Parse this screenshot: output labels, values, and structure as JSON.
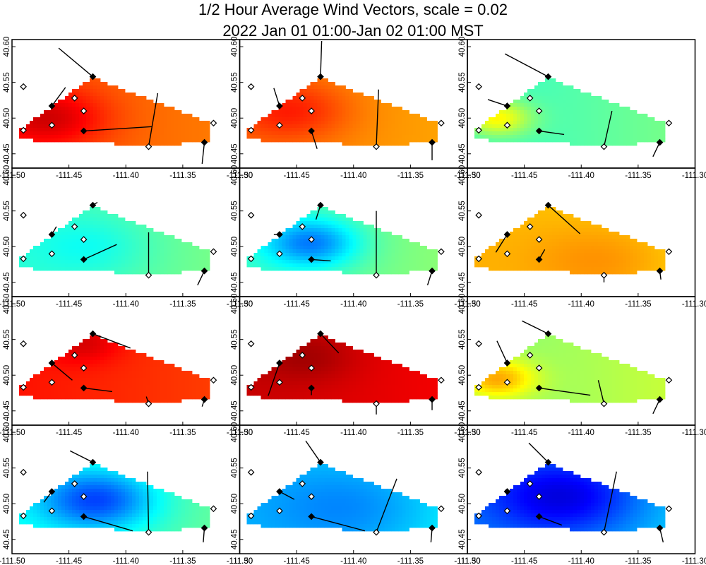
{
  "chart_data": {
    "type": "heatmap",
    "title_line1": "1/2 Hour Average Wind Vectors, scale =  0.02",
    "title_line2": "2022 Jan 01 01:00-Jan 02 01:00 MST",
    "xlim": [
      -111.5,
      -111.3
    ],
    "ylim": [
      40.43,
      40.61
    ],
    "x_ticks": [
      "-111.50",
      "-111.45",
      "-111.40",
      "-111.35",
      "-111.30"
    ],
    "x_tick_values": [
      -111.5,
      -111.45,
      -111.4,
      -111.35,
      -111.3
    ],
    "y_ticks": [
      "40.45",
      "40.50",
      "40.55",
      "40.60"
    ],
    "y_tick_values": [
      40.45,
      40.5,
      40.55,
      40.6
    ],
    "region_polygon": [
      [
        -111.495,
        40.482
      ],
      [
        -111.47,
        40.51
      ],
      [
        -111.43,
        40.557
      ],
      [
        -111.325,
        40.493
      ],
      [
        -111.328,
        40.466
      ],
      [
        -111.38,
        40.462
      ],
      [
        -111.495,
        40.47
      ]
    ],
    "stations_open": [
      [
        -111.49,
        40.544
      ],
      [
        -111.49,
        40.483
      ],
      [
        -111.465,
        40.49
      ],
      [
        -111.445,
        40.528
      ],
      [
        -111.437,
        40.51
      ],
      [
        -111.323,
        40.493
      ],
      [
        -111.38,
        40.46
      ]
    ],
    "stations_filled": [
      [
        -111.429,
        40.558
      ],
      [
        -111.465,
        40.517
      ],
      [
        -111.437,
        40.482
      ],
      [
        -111.331,
        40.466
      ]
    ],
    "colormap": [
      "#00007f",
      "#0000ff",
      "#007fff",
      "#00ffff",
      "#7fff7f",
      "#ffff00",
      "#ff7f00",
      "#ff0000",
      "#7f0000"
    ],
    "panels": [
      {
        "name": "panel-1",
        "base": 0.8,
        "hot": [
          -111.468,
          40.5,
          0.93,
          0.03
        ],
        "vectors": [
          [
            -111.429,
            40.558,
            -0.03,
            0.04
          ],
          [
            -111.465,
            40.517,
            0.012,
            0.026
          ],
          [
            -111.437,
            40.482,
            0.06,
            0.006
          ],
          [
            -111.38,
            40.46,
            0.008,
            0.075
          ],
          [
            -111.331,
            40.466,
            -0.002,
            -0.03
          ]
        ]
      },
      {
        "name": "panel-2",
        "base": 0.76,
        "hot": [
          -111.455,
          40.51,
          0.86,
          0.03
        ],
        "vectors": [
          [
            -111.429,
            40.558,
            0.001,
            0.05
          ],
          [
            -111.465,
            40.517,
            -0.005,
            0.025
          ],
          [
            -111.437,
            40.482,
            0.005,
            -0.025
          ],
          [
            -111.38,
            40.46,
            0.002,
            0.08
          ],
          [
            -111.331,
            40.466,
            0.0,
            -0.025
          ]
        ]
      },
      {
        "name": "panel-3",
        "base": 0.42,
        "hot": [
          -111.475,
          40.5,
          0.62,
          0.018
        ],
        "vectors": [
          [
            -111.429,
            40.558,
            -0.038,
            0.032
          ],
          [
            -111.465,
            40.517,
            -0.017,
            0.009
          ],
          [
            -111.437,
            40.482,
            0.022,
            -0.005
          ],
          [
            -111.38,
            40.46,
            0.007,
            0.05
          ],
          [
            -111.331,
            40.466,
            -0.006,
            -0.02
          ]
        ]
      },
      {
        "name": "panel-4",
        "base": 0.42,
        "hot": [
          -111.43,
          40.5,
          0.36,
          0.03
        ],
        "vectors": [
          [
            -111.429,
            40.558,
            0.004,
            0.004
          ],
          [
            -111.465,
            40.517,
            0.004,
            0.011
          ],
          [
            -111.437,
            40.482,
            0.029,
            0.021
          ],
          [
            -111.38,
            40.46,
            0.0,
            0.06
          ],
          [
            -111.331,
            40.466,
            -0.006,
            -0.02
          ]
        ]
      },
      {
        "name": "panel-5",
        "base": 0.44,
        "hot": [
          -111.437,
          40.505,
          0.22,
          0.025
        ],
        "vectors": [
          [
            -111.429,
            40.558,
            -0.004,
            -0.02
          ],
          [
            -111.465,
            40.517,
            -0.005,
            0.0
          ],
          [
            -111.437,
            40.482,
            0.017,
            -0.002
          ],
          [
            -111.38,
            40.46,
            0.0,
            0.09
          ],
          [
            -111.331,
            40.466,
            -0.004,
            -0.02
          ]
        ]
      },
      {
        "name": "panel-6",
        "base": 0.7,
        "hot": [
          -111.38,
          40.48,
          0.76,
          0.04
        ],
        "vectors": [
          [
            -111.429,
            40.558,
            0.028,
            -0.04
          ],
          [
            -111.465,
            40.517,
            -0.01,
            -0.025
          ],
          [
            -111.437,
            40.482,
            0.005,
            0.014
          ],
          [
            -111.38,
            40.46,
            0.0,
            -0.01
          ],
          [
            -111.331,
            40.466,
            0.001,
            -0.012
          ]
        ]
      },
      {
        "name": "panel-7",
        "base": 0.86,
        "hot": [
          -111.437,
          40.545,
          0.93,
          0.02
        ],
        "vectors": [
          [
            -111.429,
            40.558,
            0.033,
            -0.02
          ],
          [
            -111.465,
            40.517,
            0.018,
            -0.024
          ],
          [
            -111.437,
            40.482,
            0.025,
            -0.005
          ],
          [
            -111.38,
            40.46,
            -0.002,
            0.01
          ],
          [
            -111.331,
            40.466,
            -0.002,
            -0.01
          ]
        ]
      },
      {
        "name": "panel-8",
        "base": 0.93,
        "hot": [
          -111.44,
          40.525,
          0.98,
          0.025
        ],
        "vectors": [
          [
            -111.429,
            40.558,
            0.016,
            -0.027
          ],
          [
            -111.465,
            40.517,
            -0.01,
            -0.046
          ],
          [
            -111.437,
            40.482,
            0.0,
            -0.01
          ],
          [
            -111.38,
            40.46,
            0.0,
            -0.015
          ],
          [
            -111.331,
            40.466,
            0.0,
            -0.015
          ]
        ]
      },
      {
        "name": "panel-9",
        "base": 0.5,
        "hot": [
          -111.475,
          40.495,
          0.7,
          0.02
        ],
        "vectors": [
          [
            -111.429,
            40.558,
            -0.023,
            0.018
          ],
          [
            -111.465,
            40.517,
            -0.009,
            0.031
          ],
          [
            -111.437,
            40.482,
            0.045,
            -0.01
          ],
          [
            -111.38,
            40.46,
            -0.005,
            0.033
          ],
          [
            -111.331,
            40.466,
            -0.006,
            -0.02
          ]
        ]
      },
      {
        "name": "panel-10",
        "base": 0.4,
        "hot": [
          -111.425,
          40.505,
          0.16,
          0.03
        ],
        "vectors": [
          [
            -111.429,
            40.558,
            -0.02,
            0.016
          ],
          [
            -111.465,
            40.517,
            -0.007,
            -0.015
          ],
          [
            -111.437,
            40.482,
            0.043,
            -0.02
          ],
          [
            -111.38,
            40.46,
            -0.001,
            0.085
          ],
          [
            -111.331,
            40.466,
            -0.001,
            -0.02
          ]
        ]
      },
      {
        "name": "panel-11",
        "base": 0.32,
        "hot": [
          -111.4,
          40.495,
          0.22,
          0.05
        ],
        "vectors": [
          [
            -111.429,
            40.558,
            -0.013,
            0.03
          ],
          [
            -111.465,
            40.517,
            0.013,
            -0.011
          ],
          [
            -111.437,
            40.482,
            0.047,
            -0.02
          ],
          [
            -111.38,
            40.46,
            0.018,
            0.075
          ],
          [
            -111.331,
            40.466,
            -0.001,
            -0.02
          ]
        ]
      },
      {
        "name": "panel-12",
        "base": 0.26,
        "hot": [
          -111.415,
          40.51,
          0.06,
          0.04
        ],
        "vectors": [
          [
            -111.429,
            40.558,
            -0.017,
            0.027
          ],
          [
            -111.465,
            40.517,
            -0.002,
            0.002
          ],
          [
            -111.437,
            40.482,
            0.02,
            -0.012
          ],
          [
            -111.38,
            40.46,
            0.011,
            0.085
          ],
          [
            -111.331,
            40.466,
            0.003,
            -0.02
          ]
        ]
      }
    ]
  }
}
